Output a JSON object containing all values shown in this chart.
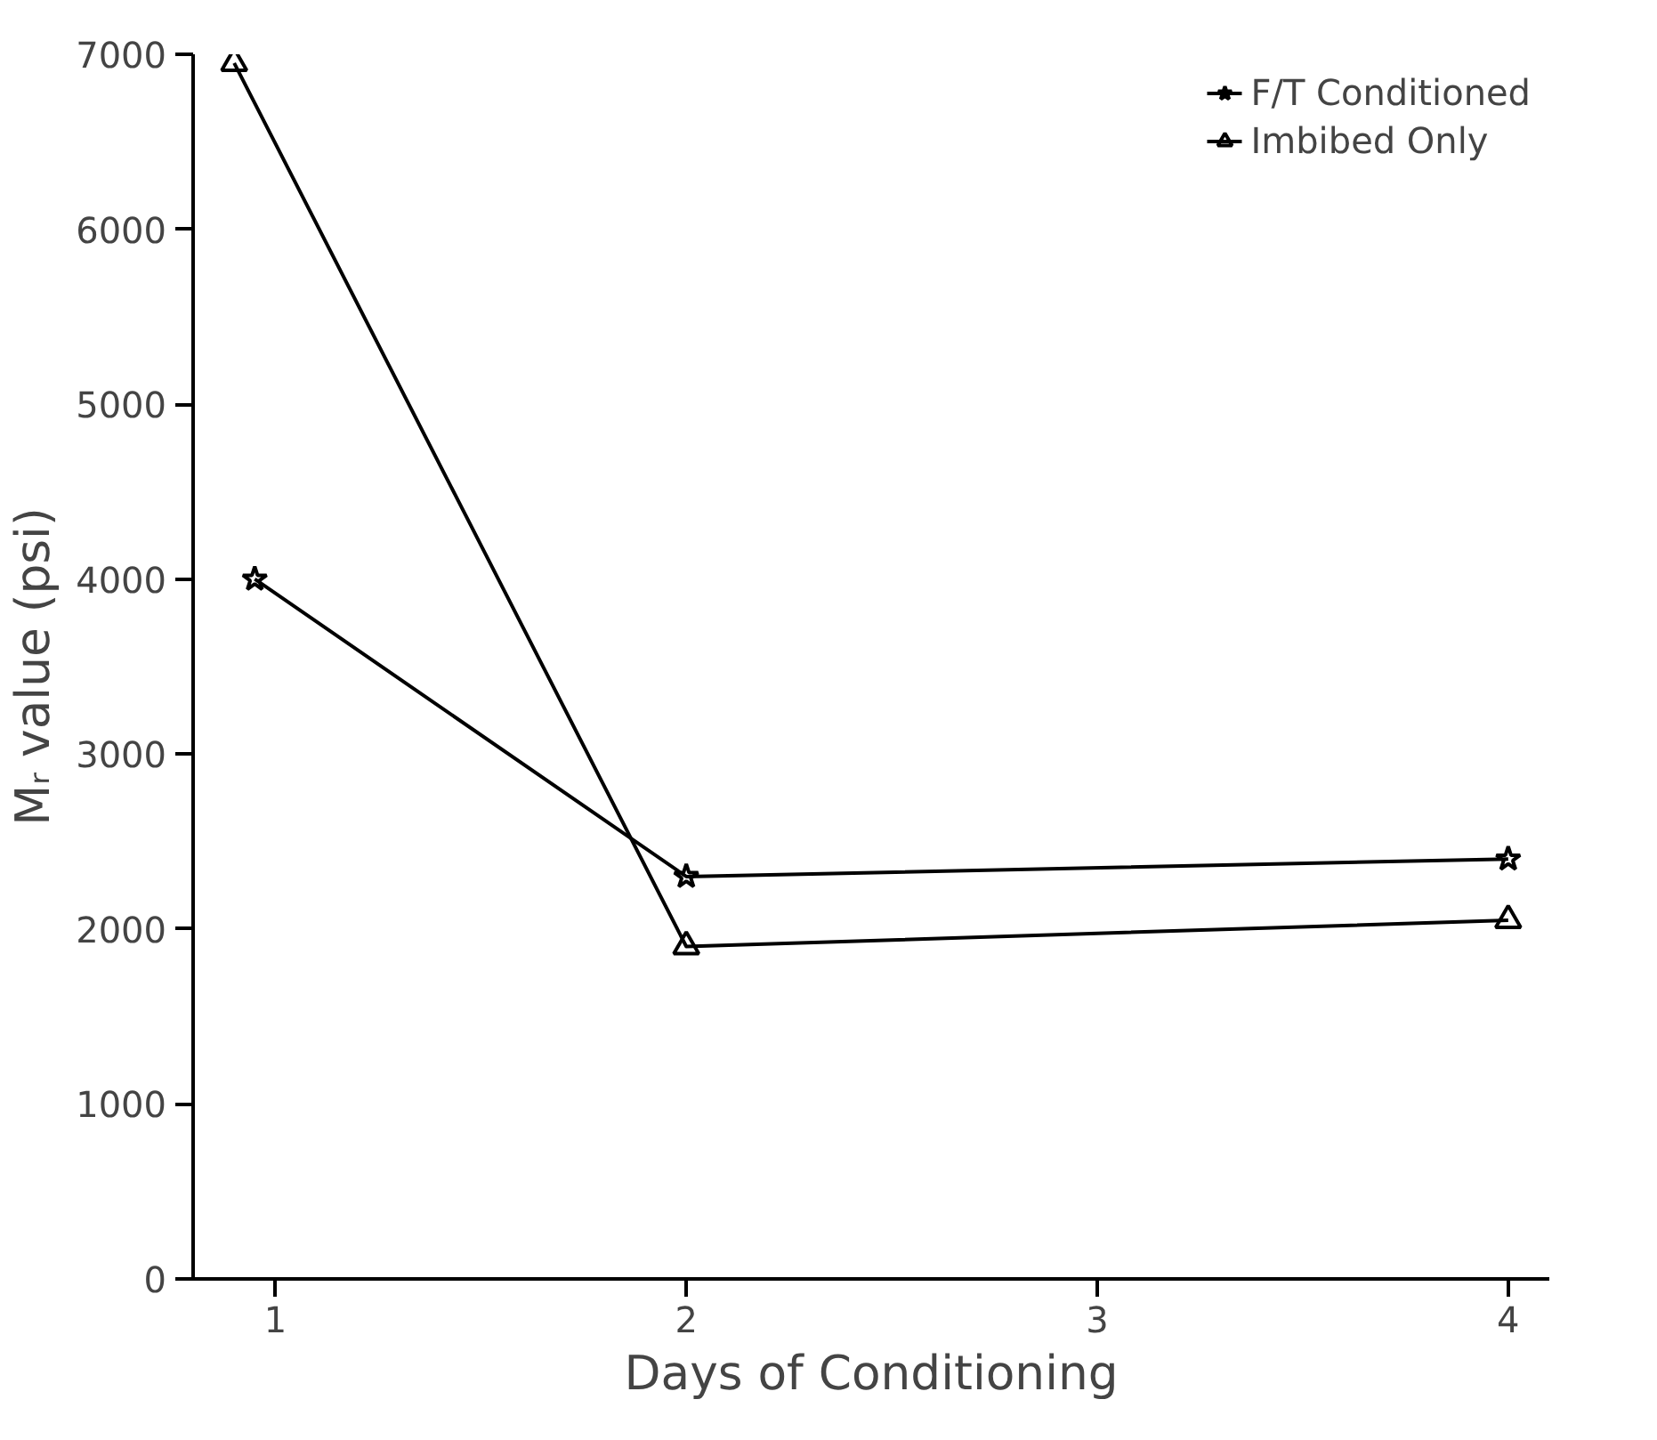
{
  "chart_data": {
    "type": "line",
    "xlabel": "Days of Conditioning",
    "ylabel": "Mᵣ value (psi)",
    "xlim": [
      0.8,
      4.1
    ],
    "xticks": [
      1,
      2,
      3,
      4
    ],
    "ylim": [
      0,
      7000
    ],
    "yticks": [
      0,
      1000,
      2000,
      3000,
      4000,
      5000,
      6000,
      7000
    ],
    "grid": false,
    "legend": "top right",
    "series": [
      {
        "name": "F/T Conditioned",
        "color": "#000000",
        "marker": "star",
        "x": [
          0.95,
          2,
          4
        ],
        "values": [
          4000,
          2300,
          2400
        ]
      },
      {
        "name": "Imbibed Only",
        "color": "#000000",
        "marker": "triangle",
        "x": [
          0.9,
          2,
          4
        ],
        "values": [
          6950,
          1900,
          2050
        ]
      }
    ]
  }
}
